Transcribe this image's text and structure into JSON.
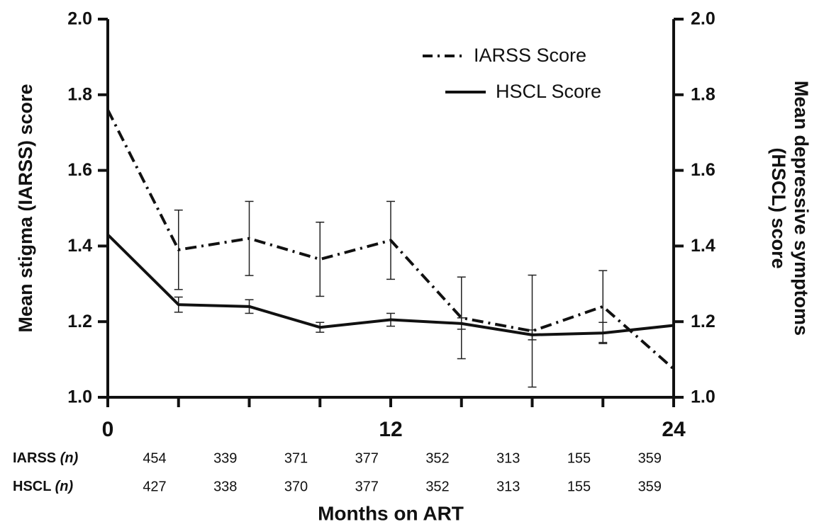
{
  "chart_data": {
    "type": "line",
    "x": [
      0,
      3,
      6,
      9,
      12,
      15,
      18,
      21,
      24
    ],
    "xlabel": "Months on ART",
    "x_ticks": [
      "0",
      "12",
      "24"
    ],
    "x_tick_values": [
      0,
      12,
      24
    ],
    "xlim": [
      0,
      24
    ],
    "ylabel_left": "Mean stigma (IARSS) score",
    "ylabel_right_line1": "Mean depressive symptoms",
    "ylabel_right_line2": "(HSCL) score",
    "ylim": [
      1.0,
      2.0
    ],
    "y_ticks": [
      "1.0",
      "1.2",
      "1.4",
      "1.6",
      "1.8",
      "2.0"
    ],
    "y_tick_values": [
      1.0,
      1.2,
      1.4,
      1.6,
      1.8,
      2.0
    ],
    "legend_position": "top-right",
    "series": [
      {
        "name": "IARSS Score",
        "style": "dash-dot",
        "values": [
          1.76,
          1.39,
          1.42,
          1.365,
          1.415,
          1.21,
          1.175,
          1.24,
          1.075
        ],
        "error": [
          null,
          0.105,
          0.098,
          0.098,
          0.103,
          0.108,
          0.148,
          0.095,
          null
        ]
      },
      {
        "name": "HSCL Score",
        "style": "solid",
        "values": [
          1.43,
          1.245,
          1.24,
          1.185,
          1.205,
          1.195,
          1.165,
          1.17,
          1.19
        ],
        "error": [
          null,
          0.02,
          0.018,
          0.013,
          0.017,
          0.015,
          0.013,
          0.028,
          null
        ]
      }
    ],
    "n_table": {
      "x_positions": [
        0,
        3,
        6,
        9,
        12,
        15,
        18,
        21
      ],
      "rows": [
        {
          "label": "IARSS",
          "label_n": "(n)",
          "values": [
            "454",
            "339",
            "371",
            "377",
            "352",
            "313",
            "155",
            "359"
          ]
        },
        {
          "label": "HSCL",
          "label_n": "(n)",
          "values": [
            "427",
            "338",
            "370",
            "377",
            "352",
            "313",
            "155",
            "359"
          ]
        }
      ]
    }
  }
}
